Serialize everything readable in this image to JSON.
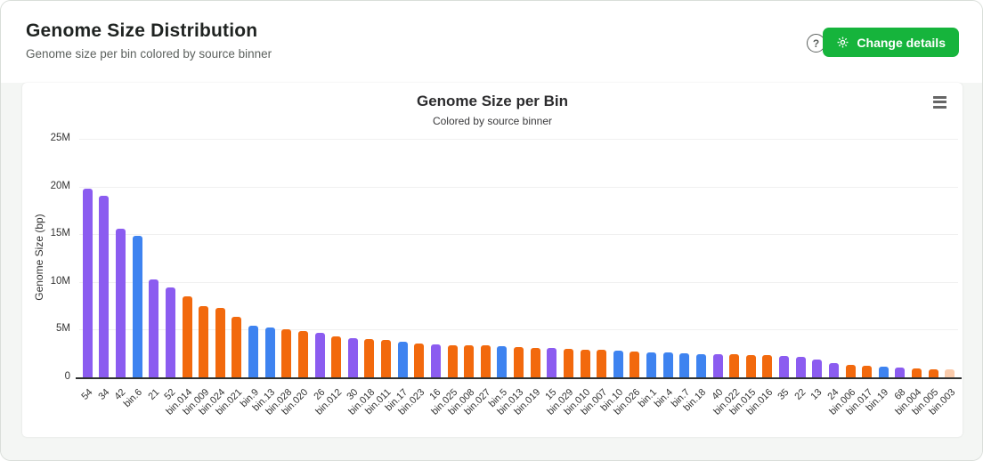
{
  "page": {
    "title": "Genome Size Distribution",
    "subtitle": "Genome size per bin colored by source binner"
  },
  "toolbar": {
    "help_icon": "?",
    "change_details_label": "Change details",
    "button_color": "#16b43c"
  },
  "chart_data": {
    "type": "bar",
    "title": "Genome Size per Bin",
    "subtitle": "Colored by source binner",
    "xlabel": "",
    "ylabel": "Genome Size (bp)",
    "unit": "bp",
    "ylim": [
      0,
      25000000
    ],
    "grid": true,
    "legend": "none",
    "ytick_labels": [
      "0",
      "5M",
      "10M",
      "15M",
      "20M",
      "25M"
    ],
    "ytick_values": [
      0,
      5000000,
      10000000,
      15000000,
      20000000,
      25000000
    ],
    "palette": {
      "purple": "#8B5CF0",
      "blue": "#3E83F0",
      "orange": "#F2690D"
    },
    "bars": [
      {
        "label": "54",
        "color": "purple",
        "value": 19800000
      },
      {
        "label": "34",
        "color": "purple",
        "value": 19000000
      },
      {
        "label": "42",
        "color": "purple",
        "value": 15600000
      },
      {
        "label": "bin.6",
        "color": "blue",
        "value": 14800000
      },
      {
        "label": "21",
        "color": "purple",
        "value": 10250000
      },
      {
        "label": "52",
        "color": "purple",
        "value": 9400000
      },
      {
        "label": "bin.014",
        "color": "orange",
        "value": 8500000
      },
      {
        "label": "bin.009",
        "color": "orange",
        "value": 7450000
      },
      {
        "label": "bin.024",
        "color": "orange",
        "value": 7300000
      },
      {
        "label": "bin.021",
        "color": "orange",
        "value": 6350000
      },
      {
        "label": "bin.9",
        "color": "blue",
        "value": 5450000
      },
      {
        "label": "bin.13",
        "color": "blue",
        "value": 5200000
      },
      {
        "label": "bin.028",
        "color": "orange",
        "value": 5050000
      },
      {
        "label": "bin.020",
        "color": "orange",
        "value": 4850000
      },
      {
        "label": "26",
        "color": "purple",
        "value": 4700000
      },
      {
        "label": "bin.012",
        "color": "orange",
        "value": 4300000
      },
      {
        "label": "30",
        "color": "purple",
        "value": 4100000
      },
      {
        "label": "bin.018",
        "color": "orange",
        "value": 4000000
      },
      {
        "label": "bin.011",
        "color": "orange",
        "value": 3900000
      },
      {
        "label": "bin.17",
        "color": "blue",
        "value": 3700000
      },
      {
        "label": "bin.023",
        "color": "orange",
        "value": 3550000
      },
      {
        "label": "16",
        "color": "purple",
        "value": 3450000
      },
      {
        "label": "bin.025",
        "color": "orange",
        "value": 3400000
      },
      {
        "label": "bin.008",
        "color": "orange",
        "value": 3400000
      },
      {
        "label": "bin.027",
        "color": "orange",
        "value": 3350000
      },
      {
        "label": "bin.5",
        "color": "blue",
        "value": 3300000
      },
      {
        "label": "bin.013",
        "color": "orange",
        "value": 3200000
      },
      {
        "label": "bin.019",
        "color": "orange",
        "value": 3100000
      },
      {
        "label": "15",
        "color": "purple",
        "value": 3100000
      },
      {
        "label": "bin.029",
        "color": "orange",
        "value": 2950000
      },
      {
        "label": "bin.010",
        "color": "orange",
        "value": 2900000
      },
      {
        "label": "bin.007",
        "color": "orange",
        "value": 2900000
      },
      {
        "label": "bin.10",
        "color": "blue",
        "value": 2800000
      },
      {
        "label": "bin.026",
        "color": "orange",
        "value": 2700000
      },
      {
        "label": "bin.1",
        "color": "blue",
        "value": 2650000
      },
      {
        "label": "bin.4",
        "color": "blue",
        "value": 2600000
      },
      {
        "label": "bin.7",
        "color": "blue",
        "value": 2500000
      },
      {
        "label": "bin.18",
        "color": "blue",
        "value": 2450000
      },
      {
        "label": "40",
        "color": "purple",
        "value": 2450000
      },
      {
        "label": "bin.022",
        "color": "orange",
        "value": 2400000
      },
      {
        "label": "bin.015",
        "color": "orange",
        "value": 2350000
      },
      {
        "label": "bin.016",
        "color": "orange",
        "value": 2300000
      },
      {
        "label": "35",
        "color": "purple",
        "value": 2250000
      },
      {
        "label": "22",
        "color": "purple",
        "value": 2100000
      },
      {
        "label": "13",
        "color": "purple",
        "value": 1850000
      },
      {
        "label": "24",
        "color": "purple",
        "value": 1450000
      },
      {
        "label": "bin.006",
        "color": "orange",
        "value": 1300000
      },
      {
        "label": "bin.017",
        "color": "orange",
        "value": 1200000
      },
      {
        "label": "bin.19",
        "color": "blue",
        "value": 1150000
      },
      {
        "label": "68",
        "color": "purple",
        "value": 1000000
      },
      {
        "label": "bin.004",
        "color": "orange",
        "value": 900000
      },
      {
        "label": "bin.005",
        "color": "orange",
        "value": 850000
      },
      {
        "label": "bin.003",
        "color": "orange",
        "value": 800000,
        "faded": true
      }
    ]
  }
}
